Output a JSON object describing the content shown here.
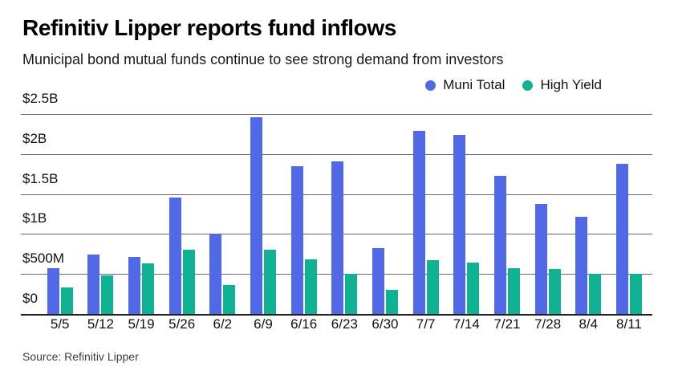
{
  "header": {
    "title": "Refinitiv Lipper reports fund inflows",
    "subtitle": "Municipal bond mutual funds continue to see strong demand from investors"
  },
  "legend": {
    "items": [
      {
        "label": "Muni Total",
        "color": "#5169e7"
      },
      {
        "label": "High Yield",
        "color": "#10b294"
      }
    ]
  },
  "footer": {
    "source": "Source: Refinitiv Lipper"
  },
  "colors": {
    "muni_total": "#5169e7",
    "high_yield": "#10b294",
    "grid_line": "#6a6a6a",
    "axis_line": "#1f1f1f"
  },
  "chart_data": {
    "type": "bar",
    "title": "Refinitiv Lipper reports fund inflows",
    "subtitle": "Municipal bond mutual funds continue to see strong demand from investors",
    "categories": [
      "5/5",
      "5/12",
      "5/19",
      "5/26",
      "6/2",
      "6/9",
      "6/16",
      "6/23",
      "6/30",
      "7/7",
      "7/14",
      "7/21",
      "7/28",
      "8/4",
      "8/11"
    ],
    "series": [
      {
        "name": "Muni Total",
        "color": "#5169e7",
        "values_billions": [
          0.57,
          0.74,
          0.71,
          1.46,
          1.0,
          2.46,
          1.85,
          1.91,
          0.82,
          2.29,
          2.24,
          1.73,
          1.38,
          1.22,
          1.88
        ]
      },
      {
        "name": "High Yield",
        "color": "#10b294",
        "values_billions": [
          0.33,
          0.48,
          0.63,
          0.8,
          0.36,
          0.8,
          0.68,
          0.5,
          0.3,
          0.67,
          0.64,
          0.57,
          0.56,
          0.5,
          0.5
        ]
      }
    ],
    "xlabel": "",
    "ylabel": "",
    "y_ticks": [
      "$2.5B",
      "$2B",
      "$1.5B",
      "$1B",
      "$500M",
      "$0"
    ],
    "ylim_billions": [
      0,
      2.5
    ],
    "grid": true,
    "legend_position": "top-right",
    "source": "Source: Refinitiv Lipper"
  }
}
